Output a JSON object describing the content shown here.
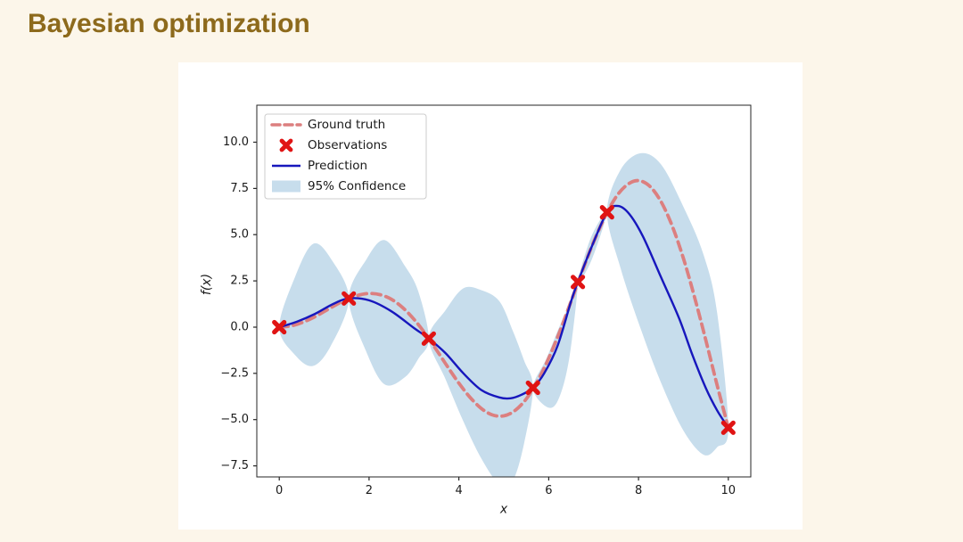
{
  "title": "Bayesian optimization",
  "colors": {
    "background": "#fcf6ea",
    "figure_bg": "#ffffff",
    "title": "#8d6a1c",
    "ground_truth": "#dc7f7f",
    "observations": "#e01414",
    "prediction": "#1717bd",
    "confidence": "#c7ddec",
    "axis": "#262626",
    "text": "#1a1a1a",
    "legend_border": "#cccccc"
  },
  "chart_data": {
    "type": "line",
    "title": "",
    "xlabel": "x",
    "ylabel": "f(x)",
    "xlim": [
      -0.5,
      10.5
    ],
    "ylim": [
      -8.1,
      12.0
    ],
    "grid": false,
    "legend_position": "upper left",
    "xticks": [
      {
        "v": 0,
        "label": "0"
      },
      {
        "v": 2,
        "label": "2"
      },
      {
        "v": 4,
        "label": "4"
      },
      {
        "v": 6,
        "label": "6"
      },
      {
        "v": 8,
        "label": "8"
      },
      {
        "v": 10,
        "label": "10"
      }
    ],
    "yticks": [
      {
        "v": 10.0,
        "label": "10.0"
      },
      {
        "v": 7.5,
        "label": "7.5"
      },
      {
        "v": 5.0,
        "label": "5.0"
      },
      {
        "v": 2.5,
        "label": "2.5"
      },
      {
        "v": 0.0,
        "label": "0.0"
      },
      {
        "v": -2.5,
        "label": "−2.5"
      },
      {
        "v": -5.0,
        "label": "−5.0"
      },
      {
        "v": -7.5,
        "label": "−7.5"
      }
    ],
    "legend": [
      {
        "label": "Ground truth",
        "type": "dashed-line"
      },
      {
        "label": "Observations",
        "type": "x-marker"
      },
      {
        "label": "Prediction",
        "type": "line"
      },
      {
        "label": "95% Confidence",
        "type": "patch"
      }
    ],
    "series": [
      {
        "name": "Ground truth",
        "role": "ground_truth",
        "function": "x*sin(x)",
        "x": [
          0,
          0.25,
          0.5,
          0.75,
          1,
          1.25,
          1.5,
          1.75,
          2,
          2.25,
          2.5,
          2.75,
          3,
          3.25,
          3.5,
          3.75,
          4,
          4.25,
          4.5,
          4.75,
          5,
          5.25,
          5.5,
          5.75,
          6,
          6.25,
          6.5,
          6.75,
          7,
          7.25,
          7.5,
          7.75,
          8,
          8.25,
          8.5,
          8.75,
          9,
          9.25,
          9.5,
          9.75,
          10
        ],
        "y": [
          0,
          0.06,
          0.24,
          0.51,
          0.84,
          1.19,
          1.5,
          1.72,
          1.82,
          1.75,
          1.5,
          1.05,
          0.42,
          -0.35,
          -1.23,
          -2.14,
          -3.03,
          -3.8,
          -4.4,
          -4.75,
          -4.8,
          -4.51,
          -3.88,
          -2.92,
          -1.68,
          -0.21,
          1.4,
          3.04,
          4.6,
          5.94,
          7.04,
          7.7,
          7.92,
          7.62,
          6.79,
          5.47,
          3.71,
          1.61,
          -0.71,
          -3.13,
          -5.44
        ]
      },
      {
        "name": "Prediction",
        "role": "prediction",
        "x": [
          0,
          0.4,
          0.8,
          1.2,
          1.55,
          2,
          2.5,
          3,
          3.33,
          3.7,
          4.1,
          4.5,
          4.9,
          5.15,
          5.4,
          5.65,
          5.9,
          6.2,
          6.5,
          6.65,
          6.95,
          7.3,
          7.55,
          7.8,
          8.1,
          8.5,
          8.9,
          9.2,
          9.5,
          9.75,
          10
        ],
        "y": [
          0,
          0.3,
          0.72,
          1.25,
          1.55,
          1.45,
          0.85,
          -0.05,
          -0.62,
          -1.4,
          -2.5,
          -3.4,
          -3.8,
          -3.85,
          -3.65,
          -3.28,
          -2.5,
          -1.0,
          1.4,
          2.44,
          4.3,
          6.21,
          6.55,
          6.1,
          4.9,
          2.7,
          0.5,
          -1.5,
          -3.3,
          -4.5,
          -5.44
        ]
      },
      {
        "name": "Observations",
        "role": "observations",
        "x": [
          0,
          1.55,
          3.33,
          5.65,
          6.65,
          7.3,
          10
        ],
        "y": [
          0,
          1.55,
          -0.62,
          -3.28,
          2.44,
          6.21,
          -5.44
        ]
      },
      {
        "name": "95% Confidence",
        "role": "band",
        "x": [
          0,
          0.35,
          0.75,
          1.15,
          1.55,
          1.95,
          2.35,
          2.8,
          3.1,
          3.33,
          3.7,
          4.1,
          4.5,
          4.9,
          5.2,
          5.45,
          5.65,
          5.95,
          6.2,
          6.45,
          6.65,
          6.95,
          7.3,
          7.6,
          8.05,
          8.5,
          9.0,
          9.45,
          9.75,
          10
        ],
        "hi": [
          0,
          2.7,
          4.5,
          3.7,
          1.55,
          3.7,
          4.7,
          3.3,
          1.9,
          -0.62,
          0.9,
          2.1,
          2.0,
          1.4,
          -0.2,
          -1.8,
          -3.28,
          -1.7,
          -0.2,
          1.2,
          2.44,
          4.9,
          6.21,
          8.5,
          9.4,
          8.8,
          6.5,
          3.9,
          0.8,
          -5.44
        ],
        "lo": [
          0,
          -1.5,
          -2.1,
          -1.0,
          1.55,
          -1.4,
          -3.1,
          -2.7,
          -1.7,
          -0.62,
          -2.8,
          -5.1,
          -7.1,
          -8.5,
          -8.3,
          -6.3,
          -3.28,
          -4.3,
          -4.0,
          -1.8,
          2.44,
          3.6,
          6.21,
          3.2,
          -0.1,
          -3.0,
          -5.6,
          -6.9,
          -6.5,
          -5.44
        ]
      }
    ]
  }
}
